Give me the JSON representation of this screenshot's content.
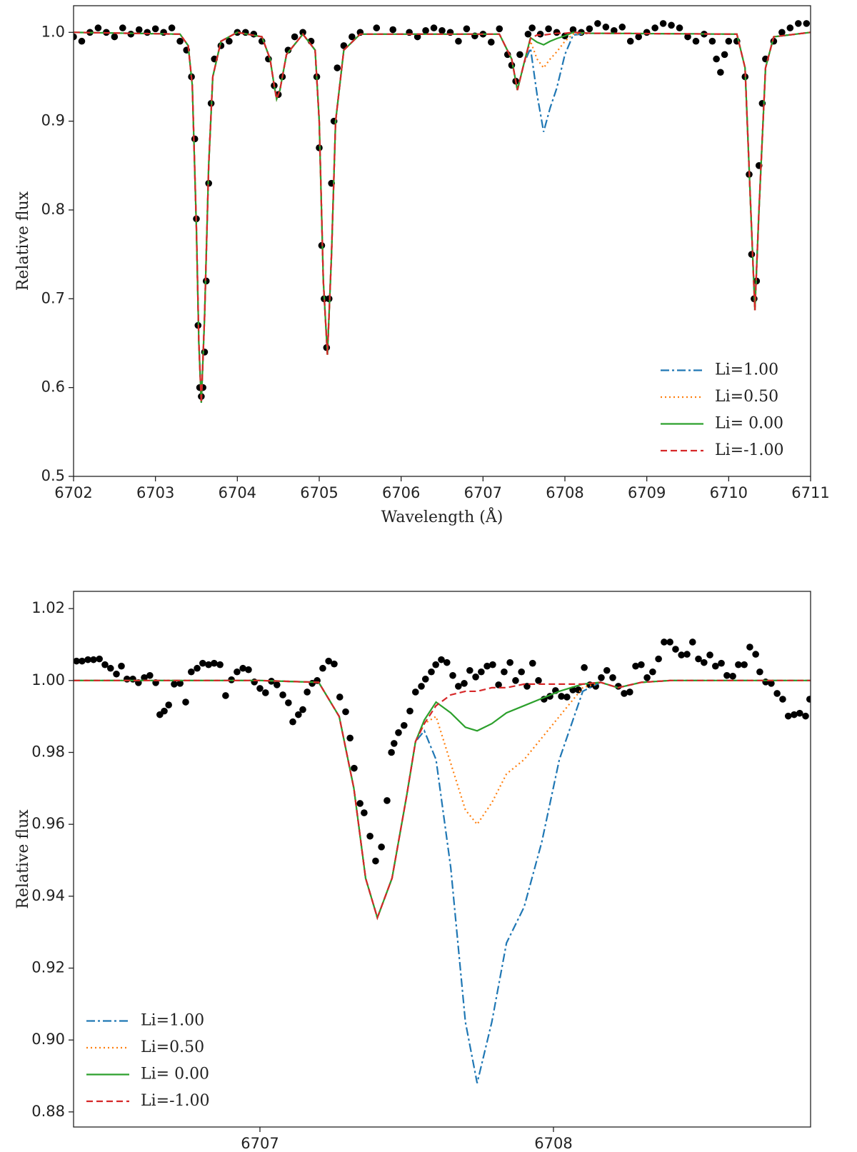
{
  "chart_data": [
    {
      "type": "line",
      "xlabel": "Wavelength (Å)",
      "ylabel": "Relative flux",
      "xlim": [
        6702,
        6711
      ],
      "ylim": [
        0.5,
        1.03
      ],
      "xticks": [
        6702,
        6703,
        6704,
        6705,
        6706,
        6707,
        6708,
        6709,
        6710,
        6711
      ],
      "yticks": [
        0.5,
        0.6,
        0.7,
        0.8,
        0.9,
        {
          "value": 1,
          "label": "1.0"
        }
      ],
      "legend": "lower right",
      "x": [
        6702.0,
        6703.3,
        6703.4,
        6703.45,
        6703.5,
        6703.53,
        6703.56,
        6703.6,
        6703.65,
        6703.7,
        6703.8,
        6704.0,
        6704.3,
        6704.4,
        6704.45,
        6704.48,
        6704.52,
        6704.6,
        6704.8,
        6704.95,
        6705.0,
        6705.05,
        6705.1,
        6705.15,
        6705.2,
        6705.3,
        6705.5,
        6707.2,
        6707.35,
        6707.42,
        6707.5,
        6707.58,
        6707.66,
        6707.74,
        6707.82,
        6707.9,
        6708.0,
        6708.1,
        6708.3,
        6710.1,
        6710.2,
        6710.27,
        6710.32,
        6710.37,
        6710.45,
        6710.55,
        6711.0
      ],
      "series": [
        {
          "name": "Li=1.00",
          "color": "#1f77b4",
          "linestyle": "dashdot",
          "values": [
            1,
            0.998,
            0.985,
            0.94,
            0.78,
            0.65,
            0.583,
            0.68,
            0.85,
            0.95,
            0.99,
            1,
            0.995,
            0.97,
            0.94,
            0.925,
            0.935,
            0.975,
            0.998,
            0.98,
            0.9,
            0.72,
            0.637,
            0.75,
            0.9,
            0.98,
            0.998,
            0.998,
            0.97,
            0.935,
            0.965,
            0.982,
            0.93,
            0.888,
            0.915,
            0.937,
            0.975,
            0.997,
            0.999,
            0.998,
            0.96,
            0.8,
            0.687,
            0.8,
            0.96,
            0.995,
            1
          ]
        },
        {
          "name": "Li=0.50",
          "color": "#ff7f0e",
          "linestyle": "dotted",
          "values": [
            1,
            0.998,
            0.985,
            0.94,
            0.78,
            0.65,
            0.583,
            0.68,
            0.85,
            0.95,
            0.99,
            1,
            0.995,
            0.97,
            0.94,
            0.925,
            0.935,
            0.975,
            0.998,
            0.98,
            0.9,
            0.72,
            0.637,
            0.75,
            0.9,
            0.98,
            0.998,
            0.998,
            0.97,
            0.935,
            0.965,
            0.99,
            0.97,
            0.96,
            0.97,
            0.978,
            0.99,
            0.998,
            0.999,
            0.998,
            0.96,
            0.8,
            0.687,
            0.8,
            0.96,
            0.995,
            1
          ]
        },
        {
          "name": "Li= 0.00",
          "color": "#2ca02c",
          "linestyle": "solid",
          "values": [
            1,
            0.998,
            0.985,
            0.94,
            0.78,
            0.65,
            0.583,
            0.68,
            0.85,
            0.95,
            0.99,
            1,
            0.995,
            0.97,
            0.94,
            0.925,
            0.935,
            0.975,
            0.998,
            0.98,
            0.9,
            0.72,
            0.637,
            0.75,
            0.9,
            0.98,
            0.998,
            0.998,
            0.97,
            0.935,
            0.965,
            0.994,
            0.989,
            0.986,
            0.99,
            0.993,
            0.996,
            1,
            0.999,
            0.998,
            0.96,
            0.8,
            0.687,
            0.8,
            0.96,
            0.995,
            1
          ]
        },
        {
          "name": "Li=-1.00",
          "color": "#d62728",
          "linestyle": "dashed",
          "values": [
            1,
            0.998,
            0.985,
            0.94,
            0.78,
            0.65,
            0.583,
            0.68,
            0.85,
            0.95,
            0.99,
            1,
            0.995,
            0.97,
            0.94,
            0.925,
            0.935,
            0.975,
            0.998,
            0.98,
            0.9,
            0.72,
            0.637,
            0.75,
            0.9,
            0.98,
            0.998,
            0.998,
            0.97,
            0.935,
            0.965,
            0.993,
            0.997,
            0.997,
            0.998,
            0.999,
            0.999,
            1,
            0.999,
            0.998,
            0.96,
            0.8,
            0.687,
            0.8,
            0.96,
            0.995,
            1
          ]
        }
      ],
      "points": {
        "color": "#000000",
        "x": [
          6702.0,
          6702.1,
          6702.2,
          6702.3,
          6702.4,
          6702.5,
          6702.6,
          6702.7,
          6702.8,
          6702.9,
          6703.0,
          6703.1,
          6703.2,
          6703.3,
          6703.38,
          6703.44,
          6703.48,
          6703.5,
          6703.52,
          6703.54,
          6703.56,
          6703.58,
          6703.6,
          6703.62,
          6703.65,
          6703.68,
          6703.72,
          6703.8,
          6703.9,
          6704.0,
          6704.1,
          6704.2,
          6704.3,
          6704.38,
          6704.45,
          6704.5,
          6704.55,
          6704.62,
          6704.7,
          6704.8,
          6704.9,
          6704.97,
          6705.0,
          6705.03,
          6705.06,
          6705.09,
          6705.12,
          6705.15,
          6705.18,
          6705.22,
          6705.3,
          6705.4,
          6705.5,
          6705.7,
          6705.9,
          6706.1,
          6706.2,
          6706.3,
          6706.4,
          6706.5,
          6706.6,
          6706.7,
          6706.8,
          6706.9,
          6707.0,
          6707.1,
          6707.2,
          6707.3,
          6707.35,
          6707.4,
          6707.45,
          6707.55,
          6707.6,
          6707.7,
          6707.8,
          6707.9,
          6708.0,
          6708.1,
          6708.2,
          6708.3,
          6708.4,
          6708.5,
          6708.6,
          6708.7,
          6708.8,
          6708.9,
          6709.0,
          6709.1,
          6709.2,
          6709.3,
          6709.4,
          6709.5,
          6709.6,
          6709.7,
          6709.8,
          6709.85,
          6709.9,
          6709.95,
          6710.0,
          6710.1,
          6710.2,
          6710.25,
          6710.28,
          6710.31,
          6710.34,
          6710.37,
          6710.41,
          6710.45,
          6710.55,
          6710.65,
          6710.75,
          6710.85,
          6710.95
        ],
        "y": [
          0.995,
          0.99,
          1.0,
          1.005,
          1.0,
          0.995,
          1.005,
          0.998,
          1.003,
          1.0,
          1.004,
          1.0,
          1.005,
          0.99,
          0.98,
          0.95,
          0.88,
          0.79,
          0.67,
          0.6,
          0.59,
          0.6,
          0.64,
          0.72,
          0.83,
          0.92,
          0.97,
          0.985,
          0.99,
          1.0,
          1.0,
          0.998,
          0.99,
          0.97,
          0.94,
          0.93,
          0.95,
          0.98,
          0.995,
          1.0,
          0.99,
          0.95,
          0.87,
          0.76,
          0.7,
          0.645,
          0.7,
          0.83,
          0.9,
          0.96,
          0.985,
          0.995,
          1.0,
          1.005,
          1.003,
          1.0,
          0.995,
          1.002,
          1.005,
          1.002,
          1.0,
          0.99,
          1.004,
          0.996,
          0.998,
          0.989,
          1.004,
          0.975,
          0.963,
          0.945,
          0.975,
          0.998,
          1.005,
          0.998,
          1.004,
          1.0,
          0.996,
          1.003,
          1.0,
          1.004,
          1.01,
          1.006,
          1.002,
          1.006,
          0.99,
          0.995,
          1.0,
          1.005,
          1.01,
          1.008,
          1.005,
          0.995,
          0.99,
          0.998,
          0.99,
          0.97,
          0.955,
          0.975,
          0.99,
          0.99,
          0.95,
          0.84,
          0.75,
          0.7,
          0.72,
          0.85,
          0.92,
          0.97,
          0.99,
          1.0,
          1.005,
          1.01,
          1.01
        ]
      }
    },
    {
      "type": "line",
      "xlabel": "Wavelength (Å)",
      "ylabel": "Relative flux",
      "xlim": [
        6706.365,
        6708.876
      ],
      "ylim": [
        0.8758,
        1.0248
      ],
      "xticks": [
        6707,
        6708
      ],
      "yticks": [
        0.88,
        {
          "value": 0.9,
          "label": "0.90"
        },
        0.92,
        0.94,
        0.96,
        0.98,
        {
          "value": 1,
          "label": "1.00"
        },
        1.02
      ],
      "legend": "lower left",
      "x": [
        6706.365,
        6707.0,
        6707.2,
        6707.27,
        6707.32,
        6707.36,
        6707.4,
        6707.45,
        6707.5,
        6707.53,
        6707.56,
        6707.6,
        6707.65,
        6707.7,
        6707.74,
        6707.79,
        6707.84,
        6707.9,
        6707.96,
        6708.02,
        6708.1,
        6708.16,
        6708.22,
        6708.3,
        6708.4,
        6708.876
      ],
      "series": [
        {
          "name": "Li=1.00",
          "color": "#1f77b4",
          "linestyle": "dashdot",
          "values": [
            1,
            1,
            0.9995,
            0.99,
            0.97,
            0.945,
            0.934,
            0.945,
            0.968,
            0.983,
            0.986,
            0.978,
            0.948,
            0.905,
            0.888,
            0.905,
            0.927,
            0.937,
            0.955,
            0.978,
            0.997,
            0.9995,
            0.998,
            0.9995,
            1,
            1
          ]
        },
        {
          "name": "Li=0.50",
          "color": "#ff7f0e",
          "linestyle": "dotted",
          "values": [
            1,
            1,
            0.9995,
            0.99,
            0.97,
            0.945,
            0.934,
            0.945,
            0.968,
            0.983,
            0.988,
            0.99,
            0.977,
            0.964,
            0.96,
            0.966,
            0.974,
            0.978,
            0.984,
            0.99,
            0.998,
            0.9995,
            0.998,
            0.9995,
            1,
            1
          ]
        },
        {
          "name": "Li= 0.00",
          "color": "#2ca02c",
          "linestyle": "solid",
          "values": [
            1,
            1,
            0.9995,
            0.99,
            0.97,
            0.945,
            0.934,
            0.945,
            0.968,
            0.983,
            0.989,
            0.994,
            0.991,
            0.987,
            0.986,
            0.988,
            0.991,
            0.993,
            0.995,
            0.997,
            0.999,
            0.9995,
            0.998,
            0.9995,
            1,
            1
          ]
        },
        {
          "name": "Li=-1.00",
          "color": "#d62728",
          "linestyle": "dashed",
          "values": [
            1,
            1,
            0.9995,
            0.99,
            0.97,
            0.945,
            0.934,
            0.945,
            0.968,
            0.983,
            0.988,
            0.993,
            0.996,
            0.997,
            0.997,
            0.998,
            0.998,
            0.999,
            0.999,
            0.999,
            0.999,
            0.9995,
            0.998,
            0.9995,
            1,
            1
          ]
        }
      ],
      "points": {
        "color": "#000000",
        "x": [
          6706.375,
          6706.394,
          6706.414,
          6706.433,
          6706.453,
          6706.472,
          6706.491,
          6706.511,
          6706.528,
          6706.547,
          6706.567,
          6706.586,
          6706.606,
          6706.625,
          6706.645,
          6706.659,
          6706.674,
          6706.689,
          6706.708,
          6706.728,
          6706.747,
          6706.766,
          6706.786,
          6706.805,
          6706.825,
          6706.844,
          6706.864,
          6706.883,
          6706.903,
          6706.922,
          6706.942,
          6706.961,
          6706.981,
          6707.0,
          6707.019,
          6707.039,
          6707.058,
          6707.078,
          6707.097,
          6707.112,
          6707.131,
          6707.146,
          6707.161,
          6707.178,
          6707.195,
          6707.214,
          6707.234,
          6707.253,
          6707.272,
          6707.292,
          6707.307,
          6707.321,
          6707.341,
          6707.355,
          6707.375,
          6707.394,
          6707.414,
          6707.433,
          6707.448,
          6707.457,
          6707.472,
          6707.491,
          6707.511,
          6707.53,
          6707.55,
          6707.564,
          6707.584,
          6707.599,
          6707.618,
          6707.637,
          6707.657,
          6707.676,
          6707.696,
          6707.715,
          6707.735,
          6707.754,
          6707.774,
          6707.793,
          6707.813,
          6707.832,
          6707.852,
          6707.871,
          6707.891,
          6707.91,
          6707.929,
          6707.949,
          6707.968,
          6707.988,
          6708.007,
          6708.027,
          6708.046,
          6708.066,
          6708.085,
          6708.105,
          6708.124,
          6708.144,
          6708.163,
          6708.182,
          6708.202,
          6708.221,
          6708.241,
          6708.26,
          6708.28,
          6708.299,
          6708.319,
          6708.338,
          6708.358,
          6708.377,
          6708.397,
          6708.416,
          6708.436,
          6708.455,
          6708.474,
          6708.494,
          6708.513,
          6708.533,
          6708.552,
          6708.572,
          6708.591,
          6708.611,
          6708.63,
          6708.65,
          6708.669,
          6708.689,
          6708.703,
          6708.723,
          6708.742,
          6708.762,
          6708.781,
          6708.8,
          6708.82,
          6708.839,
          6708.859,
          6708.873
        ],
        "y": [
          1.0054,
          1.0054,
          1.0058,
          1.0058,
          1.006,
          1.0044,
          1.0034,
          1.0018,
          1.004,
          1.0004,
          1.0004,
          0.9994,
          1.0008,
          1.0014,
          0.9994,
          0.9905,
          0.9915,
          0.9932,
          0.999,
          0.9992,
          0.994,
          1.0024,
          1.0034,
          1.0048,
          1.0044,
          1.0048,
          1.0044,
          0.9958,
          1.0002,
          1.0024,
          1.0034,
          1.003,
          0.9996,
          0.9978,
          0.9966,
          0.9998,
          0.9988,
          0.996,
          0.9938,
          0.9885,
          0.9905,
          0.9919,
          0.9968,
          0.9992,
          1.0,
          1.0034,
          1.0054,
          1.0046,
          0.9954,
          0.9913,
          0.984,
          0.9756,
          0.9658,
          0.9632,
          0.9567,
          0.9498,
          0.9537,
          0.9666,
          0.98,
          0.9825,
          0.9855,
          0.9875,
          0.9915,
          0.9968,
          0.9984,
          1.0004,
          1.0024,
          1.0044,
          1.0058,
          1.005,
          1.0014,
          0.9984,
          0.9992,
          1.0028,
          1.001,
          1.0024,
          1.004,
          1.0044,
          0.9988,
          1.0024,
          1.005,
          1.0,
          1.0024,
          0.9984,
          1.0048,
          1.0,
          0.9948,
          0.9956,
          0.9972,
          0.9956,
          0.9954,
          0.9974,
          0.9974,
          1.0036,
          0.9988,
          0.9984,
          1.0008,
          1.0028,
          1.0008,
          0.9984,
          0.9964,
          0.9968,
          1.004,
          1.0044,
          1.0008,
          1.0024,
          1.006,
          1.0107,
          1.0107,
          1.0087,
          1.0071,
          1.0073,
          1.0107,
          1.006,
          1.005,
          1.0071,
          1.004,
          1.0048,
          1.0014,
          1.0012,
          1.0044,
          1.0044,
          1.0093,
          1.0073,
          1.0024,
          0.9996,
          0.9992,
          0.9964,
          0.9948,
          0.9901,
          0.9905,
          0.9909,
          0.9901,
          0.9948
        ]
      }
    }
  ]
}
